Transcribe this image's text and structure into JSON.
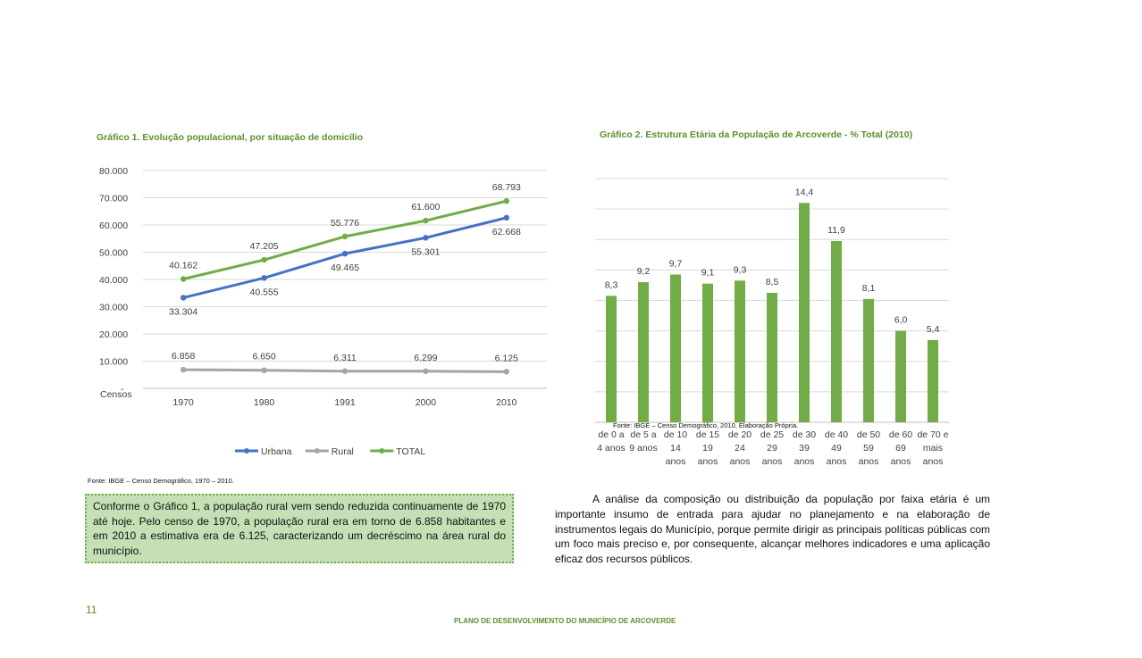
{
  "page": {
    "number": "11",
    "footer": "PLANO DE DESENVOLVIMENTO DO MUNICÍPIO DE ARCOVERDE"
  },
  "chart1": {
    "title": "Gráfico 1. Evolução populacional,  por situação de domicílio",
    "source": "Fonte: IBGE – Censo Demográfico, 1970 – 2010."
  },
  "chart2": {
    "title": "Gráfico 2. Estrutura Etária da População de Arcoverde - % Total (2010)",
    "source": "Fonte: IBGE – Censo Demográfico, 2010. Elaboração Própria."
  },
  "text": {
    "callout": "Conforme o Gráfico 1, a população rural vem sendo reduzida continuamente de 1970 até hoje. Pelo censo de 1970, a população rural era em torno de 6.858 habitantes e em 2010 a estimativa era de 6.125, caracterizando um decréscimo na área rural do município.",
    "paragraph": "A análise da composição ou distribuição da população por faixa etária é um importante insumo de entrada para ajudar no planejamento e na elaboração de instrumentos legais do Município, porque permite dirigir  as principais políticas públicas com um foco mais preciso e, por consequente, alcançar melhores indicadores e uma aplicação eficaz dos recursos públicos."
  },
  "chart_data": [
    {
      "type": "line",
      "title": "Gráfico 1. Evolução populacional,  por situação de domicílio",
      "xlabel": "Censos",
      "x": [
        "1970",
        "1980",
        "1991",
        "2000",
        "2010"
      ],
      "ylim": [
        0,
        80000
      ],
      "ytick_labels": [
        "-",
        "10.000",
        "20.000",
        "30.000",
        "40.000",
        "50.000",
        "60.000",
        "70.000",
        "80.000"
      ],
      "grid": true,
      "legend": "bottom",
      "series": [
        {
          "name": "Urbana",
          "color": "#4472c4",
          "values": [
            33304,
            40555,
            49465,
            55301,
            62668
          ],
          "labels": [
            "33.304",
            "40.555",
            "49.465",
            "55.301",
            "62.668"
          ]
        },
        {
          "name": "Rural",
          "color": "#a5a5a5",
          "values": [
            6858,
            6650,
            6311,
            6299,
            6125
          ],
          "labels": [
            "6.858",
            "6.650",
            "6.311",
            "6.299",
            "6.125"
          ]
        },
        {
          "name": "TOTAL",
          "color": "#70ad47",
          "values": [
            40162,
            47205,
            55776,
            61600,
            68793
          ],
          "labels": [
            "40.162",
            "47.205",
            "55.776",
            "61.600",
            "68.793"
          ]
        }
      ]
    },
    {
      "type": "bar",
      "title": "Gráfico 2. Estrutura Etária da População de Arcoverde - % Total (2010)",
      "categories": [
        [
          "de 0 a",
          "4 anos"
        ],
        [
          "de 5 a",
          "9 anos"
        ],
        [
          "de 10",
          "14",
          "anos"
        ],
        [
          "de 15",
          "19",
          "anos"
        ],
        [
          "de 20",
          "24",
          "anos"
        ],
        [
          "de 25",
          "29",
          "anos"
        ],
        [
          "de 30",
          "39",
          "anos"
        ],
        [
          "de 40",
          "49",
          "anos"
        ],
        [
          "de 50",
          "59",
          "anos"
        ],
        [
          "de 60",
          "69",
          "anos"
        ],
        [
          "de 70 e",
          "mais",
          "anos"
        ]
      ],
      "values": [
        8.3,
        9.2,
        9.7,
        9.1,
        9.3,
        8.5,
        14.4,
        11.9,
        8.1,
        6.0,
        5.4
      ],
      "labels": [
        "8,3",
        "9,2",
        "9,7",
        "9,1",
        "9,3",
        "8,5",
        "14,4",
        "11,9",
        "8,1",
        "6,0",
        "5,4"
      ],
      "ylim": [
        0,
        16
      ],
      "grid": true,
      "color": "#70ad47"
    }
  ]
}
